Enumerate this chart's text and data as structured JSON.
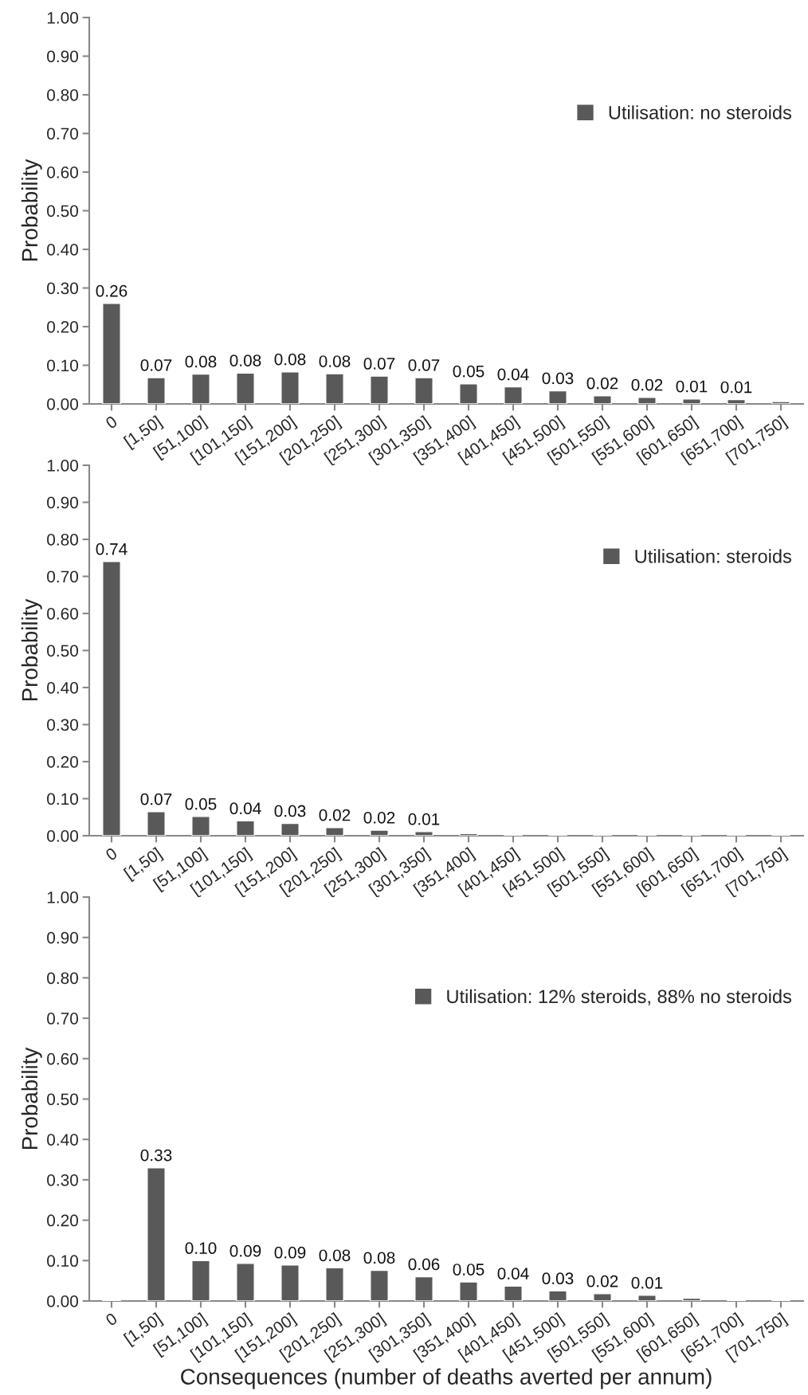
{
  "chart_data": [
    {
      "type": "bar",
      "ylabel": "Probability",
      "categories": [
        "0",
        "[1,50]",
        "[51,100]",
        "[101,150]",
        "[151,200]",
        "[201,250]",
        "[251,300]",
        "[301,350]",
        "[351,400]",
        "[401,450]",
        "[451,500]",
        "[501,550]",
        "[551,600]",
        "[601,650]",
        "[651,700]",
        "[701,750]"
      ],
      "series": [
        {
          "name": "Utilisation: no steroids",
          "color": "#595959",
          "values": [
            0.26,
            0.068,
            0.077,
            0.08,
            0.083,
            0.078,
            0.072,
            0.068,
            0.052,
            0.044,
            0.034,
            0.021,
            0.017,
            0.013,
            0.011,
            0.006
          ],
          "value_labels": [
            "0.26",
            "0.07",
            "0.08",
            "0.08",
            "0.08",
            "0.08",
            "0.07",
            "0.07",
            "0.05",
            "0.04",
            "0.03",
            "0.02",
            "0.02",
            "0.01",
            "0.01",
            null
          ]
        }
      ],
      "ylim": [
        0,
        1
      ],
      "yticks": [
        {
          "value": 0,
          "label": "0.00"
        },
        {
          "value": 0.1,
          "label": "0.10"
        },
        {
          "value": 0.2,
          "label": "0.20"
        },
        {
          "value": 0.3,
          "label": "0.30"
        },
        {
          "value": 0.4,
          "label": "0.40"
        },
        {
          "value": 0.5,
          "label": "0.50"
        },
        {
          "value": 0.6,
          "label": "0.60"
        },
        {
          "value": 0.7,
          "label": "0.70"
        },
        {
          "value": 0.8,
          "label": "0.80"
        },
        {
          "value": 0.9,
          "label": "0.90"
        },
        {
          "value": 1,
          "label": "1.00"
        }
      ],
      "grid": false,
      "legend": "right"
    },
    {
      "type": "bar",
      "ylabel": "Probability",
      "categories": [
        "0",
        "[1,50]",
        "[51,100]",
        "[101,150]",
        "[151,200]",
        "[201,250]",
        "[251,300]",
        "[301,350]",
        "[351,400]",
        "[401,450]",
        "[451,500]",
        "[501,550]",
        "[551,600]",
        "[601,650]",
        "[651,700]",
        "[701,750]"
      ],
      "series": [
        {
          "name": "Utilisation: steroids",
          "color": "#595959",
          "values": [
            0.74,
            0.065,
            0.052,
            0.04,
            0.033,
            0.022,
            0.015,
            0.011,
            0.006,
            0.003,
            0.003,
            0.003,
            0.003,
            0.003,
            0.003,
            0.003
          ],
          "value_labels": [
            "0.74",
            "0.07",
            "0.05",
            "0.04",
            "0.03",
            "0.02",
            "0.02",
            "0.01",
            null,
            null,
            null,
            null,
            null,
            null,
            null,
            null
          ]
        }
      ],
      "ylim": [
        0,
        1
      ],
      "yticks": [
        {
          "value": 0,
          "label": "0.00"
        },
        {
          "value": 0.1,
          "label": "0.10"
        },
        {
          "value": 0.2,
          "label": "0.20"
        },
        {
          "value": 0.3,
          "label": "0.30"
        },
        {
          "value": 0.4,
          "label": "0.40"
        },
        {
          "value": 0.5,
          "label": "0.50"
        },
        {
          "value": 0.6,
          "label": "0.60"
        },
        {
          "value": 0.7,
          "label": "0.70"
        },
        {
          "value": 0.8,
          "label": "0.80"
        },
        {
          "value": 0.9,
          "label": "0.90"
        },
        {
          "value": 1,
          "label": "1.00"
        }
      ],
      "grid": false,
      "legend": "right"
    },
    {
      "type": "bar",
      "ylabel": "Probability",
      "xlabel": "Consequences (number of deaths averted per annum)",
      "categories": [
        "0",
        "[1,50]",
        "[51,100]",
        "[101,150]",
        "[151,200]",
        "[201,250]",
        "[251,300]",
        "[301,350]",
        "[351,400]",
        "[401,450]",
        "[451,500]",
        "[501,550]",
        "[551,600]",
        "[601,650]",
        "[651,700]",
        "[701,750]"
      ],
      "series": [
        {
          "name": "Utilisation: 12% steroids, 88% no steroids",
          "color": "#595959",
          "values": [
            0.003,
            0.33,
            0.1,
            0.093,
            0.089,
            0.082,
            0.076,
            0.06,
            0.047,
            0.037,
            0.025,
            0.018,
            0.014,
            0.007,
            0.003,
            0.003
          ],
          "value_labels": [
            null,
            "0.33",
            "0.10",
            "0.09",
            "0.09",
            "0.08",
            "0.08",
            "0.06",
            "0.05",
            "0.04",
            "0.03",
            "0.02",
            "0.01",
            null,
            null,
            null
          ]
        }
      ],
      "ylim": [
        0,
        1
      ],
      "yticks": [
        {
          "value": 0,
          "label": "0.00"
        },
        {
          "value": 0.1,
          "label": "0.10"
        },
        {
          "value": 0.2,
          "label": "0.20"
        },
        {
          "value": 0.3,
          "label": "0.30"
        },
        {
          "value": 0.4,
          "label": "0.40"
        },
        {
          "value": 0.5,
          "label": "0.50"
        },
        {
          "value": 0.6,
          "label": "0.60"
        },
        {
          "value": 0.7,
          "label": "0.70"
        },
        {
          "value": 0.8,
          "label": "0.80"
        },
        {
          "value": 0.9,
          "label": "0.90"
        },
        {
          "value": 1,
          "label": "1.00"
        }
      ],
      "grid": false,
      "legend": "right"
    }
  ]
}
